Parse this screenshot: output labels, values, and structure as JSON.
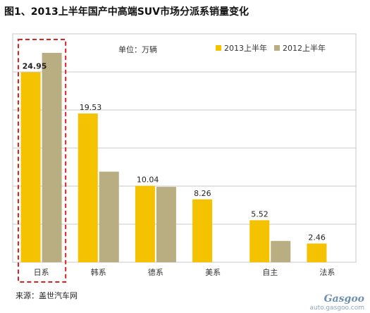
{
  "title": "图1、2013上半年国产中高端SUV市场分派系销量变化",
  "unit": "单位：万辆",
  "source": "来源：盖世汽车网",
  "watermark": {
    "brand": "Gasgoo",
    "url": "auto.gasgoo.com"
  },
  "colors": {
    "s2013": "#F5C200",
    "s2012": "#B8AE82",
    "highlight": "#E02020",
    "grid": "#C8C8C8"
  },
  "chart_data": {
    "type": "bar",
    "categories": [
      "日系",
      "韩系",
      "德系",
      "美系",
      "自主",
      "法系"
    ],
    "series": [
      {
        "name": "2013上半年",
        "values": [
          24.95,
          19.53,
          10.04,
          8.26,
          5.52,
          2.46
        ]
      },
      {
        "name": "2012上半年",
        "values": [
          27.5,
          11.9,
          9.9,
          0,
          2.8,
          0
        ]
      }
    ],
    "data_labels": [
      "24.95",
      "19.53",
      "10.04",
      "8.26",
      "5.52",
      "2.46"
    ],
    "ylim": [
      0,
      30
    ],
    "grid": true,
    "legend": "top-right",
    "highlight_category": "日系"
  }
}
